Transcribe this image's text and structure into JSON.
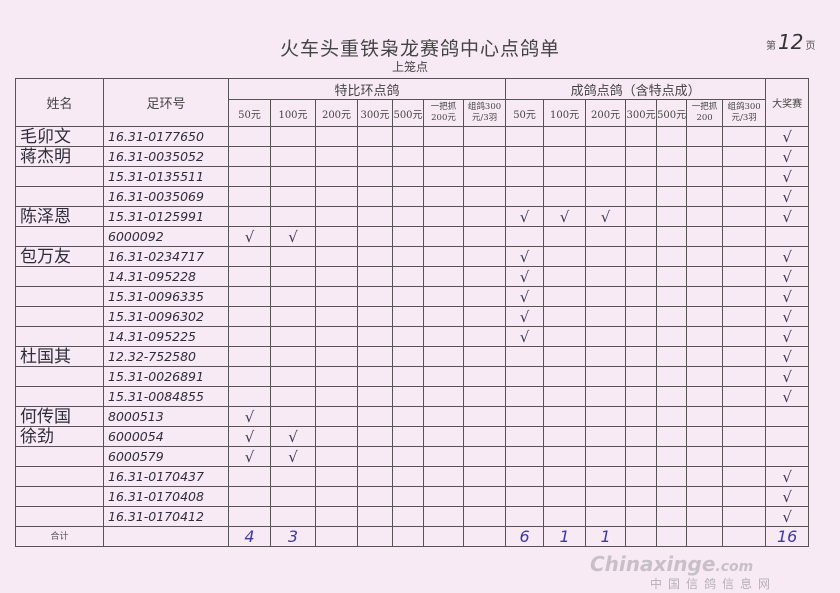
{
  "document": {
    "title": "火车头重铁枭龙赛鸽中心点鸽单",
    "subtitle": "上笼点",
    "page_prefix": "第",
    "page_number": "12",
    "page_suffix": "页"
  },
  "table": {
    "col_name": "姓名",
    "col_ring": "足环号",
    "group_special": "特比环点鸽",
    "group_adult": "成鸽点鸽（含特点成）",
    "col_grand_prize": "大奖赛",
    "special_columns": [
      "50元",
      "100元",
      "200元",
      "300元",
      "500元",
      "一把抓200元",
      "组鸽300元/3羽"
    ],
    "adult_columns": [
      "50元",
      "100元",
      "200元",
      "300元",
      "500元",
      "一把抓200",
      "组鸽300元/3羽"
    ],
    "check_mark": "√",
    "rows": [
      {
        "name": "毛卯文",
        "ring": "16.31-0177650",
        "special": [],
        "adult": [],
        "grand": true
      },
      {
        "name": "蒋杰明",
        "ring": "16.31-0035052",
        "special": [],
        "adult": [],
        "grand": true
      },
      {
        "name": "",
        "ring": "15.31-0135511",
        "special": [],
        "adult": [],
        "grand": true
      },
      {
        "name": "",
        "ring": "16.31-0035069",
        "special": [],
        "adult": [],
        "grand": true
      },
      {
        "name": "陈泽恩",
        "ring": "15.31-0125991",
        "special": [],
        "adult": [
          0,
          1,
          2
        ],
        "grand": true
      },
      {
        "name": "",
        "ring": "6000092",
        "special": [
          0,
          1
        ],
        "adult": [],
        "grand": false
      },
      {
        "name": "包万友",
        "ring": "16.31-0234717",
        "special": [],
        "adult": [
          0
        ],
        "grand": true
      },
      {
        "name": "",
        "ring": "14.31-095228",
        "special": [],
        "adult": [
          0
        ],
        "grand": true
      },
      {
        "name": "",
        "ring": "15.31-0096335",
        "special": [],
        "adult": [
          0
        ],
        "grand": true
      },
      {
        "name": "",
        "ring": "15.31-0096302",
        "special": [],
        "adult": [
          0
        ],
        "grand": true
      },
      {
        "name": "",
        "ring": "14.31-095225",
        "special": [],
        "adult": [
          0
        ],
        "grand": true
      },
      {
        "name": "杜国其",
        "ring": "12.32-752580",
        "special": [],
        "adult": [],
        "grand": true
      },
      {
        "name": "",
        "ring": "15.31-0026891",
        "special": [],
        "adult": [],
        "grand": true
      },
      {
        "name": "",
        "ring": "15.31-0084855",
        "special": [],
        "adult": [],
        "grand": true
      },
      {
        "name": "何传国",
        "ring": "8000513",
        "special": [
          0
        ],
        "adult": [],
        "grand": false
      },
      {
        "name": "徐劲",
        "ring": "6000054",
        "special": [
          0,
          1
        ],
        "adult": [],
        "grand": false
      },
      {
        "name": "",
        "ring": "6000579",
        "special": [
          0,
          1
        ],
        "adult": [],
        "grand": false
      },
      {
        "name": "",
        "ring": "16.31-0170437",
        "special": [],
        "adult": [],
        "grand": true
      },
      {
        "name": "",
        "ring": "16.31-0170408",
        "special": [],
        "adult": [],
        "grand": true
      },
      {
        "name": "",
        "ring": "16.31-0170412",
        "special": [],
        "adult": [],
        "grand": true
      }
    ],
    "total_label": "合计",
    "totals": {
      "special": [
        "4",
        "3",
        "",
        "",
        "",
        "",
        ""
      ],
      "adult": [
        "6",
        "1",
        "1",
        "",
        "",
        "",
        ""
      ],
      "grand": "16"
    }
  },
  "watermark": {
    "site": "Chinaxinge",
    "domain": ".com",
    "name": "中国信鸽信息网"
  }
}
